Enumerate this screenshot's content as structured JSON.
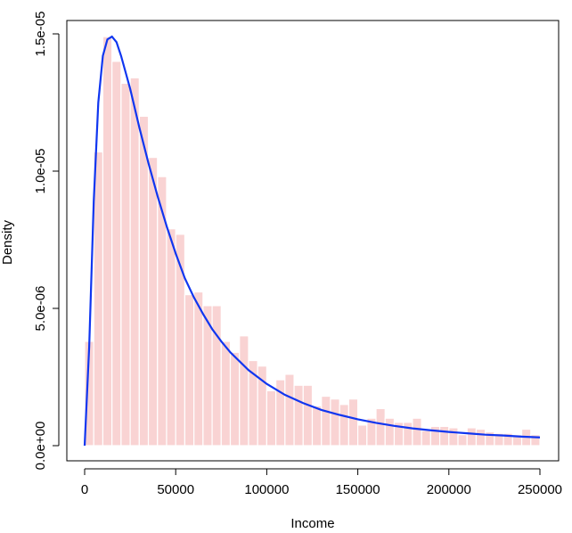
{
  "chart_data": {
    "type": "bar",
    "xlabel": "Income",
    "ylabel": "Density",
    "xlim": [
      0,
      250000
    ],
    "ylim": [
      0,
      1.5e-05
    ],
    "x_ticks": [
      0,
      50000,
      100000,
      150000,
      200000,
      250000
    ],
    "x_tick_labels": [
      "0",
      "50000",
      "100000",
      "150000",
      "200000",
      "250000"
    ],
    "y_ticks": [
      0,
      5e-06,
      1e-05,
      1.5e-05
    ],
    "y_tick_labels": [
      "0.0e+00",
      "5.0e-06",
      "1.0e-05",
      "1.5e-05"
    ],
    "bin_width": 5000,
    "bins": [
      [
        0,
        3.8e-06
      ],
      [
        5000,
        1.07e-05
      ],
      [
        10000,
        1.49e-05
      ],
      [
        15000,
        1.4e-05
      ],
      [
        20000,
        1.32e-05
      ],
      [
        25000,
        1.34e-05
      ],
      [
        30000,
        1.2e-05
      ],
      [
        35000,
        1.05e-05
      ],
      [
        40000,
        9.8e-06
      ],
      [
        45000,
        7.9e-06
      ],
      [
        50000,
        7.7e-06
      ],
      [
        55000,
        5.5e-06
      ],
      [
        60000,
        5.6e-06
      ],
      [
        65000,
        5.1e-06
      ],
      [
        70000,
        5.1e-06
      ],
      [
        75000,
        3.8e-06
      ],
      [
        80000,
        3.4e-06
      ],
      [
        85000,
        4e-06
      ],
      [
        90000,
        3.1e-06
      ],
      [
        95000,
        2.9e-06
      ],
      [
        100000,
        2e-06
      ],
      [
        105000,
        2.4e-06
      ],
      [
        110000,
        2.6e-06
      ],
      [
        115000,
        2.2e-06
      ],
      [
        120000,
        2.2e-06
      ],
      [
        125000,
        1.45e-06
      ],
      [
        130000,
        1.8e-06
      ],
      [
        135000,
        1.7e-06
      ],
      [
        140000,
        1.5e-06
      ],
      [
        145000,
        1.7e-06
      ],
      [
        150000,
        7.5e-07
      ],
      [
        155000,
        1e-06
      ],
      [
        160000,
        1.35e-06
      ],
      [
        165000,
        1e-06
      ],
      [
        170000,
        8.5e-07
      ],
      [
        175000,
        8.5e-07
      ],
      [
        180000,
        1e-06
      ],
      [
        185000,
        5.5e-07
      ],
      [
        190000,
        7e-07
      ],
      [
        195000,
        7e-07
      ],
      [
        200000,
        6.5e-07
      ],
      [
        205000,
        4e-07
      ],
      [
        210000,
        6.5e-07
      ],
      [
        215000,
        6e-07
      ],
      [
        220000,
        5e-07
      ],
      [
        225000,
        4.5e-07
      ],
      [
        230000,
        4.5e-07
      ],
      [
        235000,
        4e-07
      ],
      [
        240000,
        6e-07
      ],
      [
        245000,
        4e-07
      ]
    ],
    "density_curve": {
      "x": [
        0,
        2500,
        5000,
        7500,
        10000,
        12500,
        15000,
        17500,
        20000,
        25000,
        30000,
        35000,
        40000,
        45000,
        50000,
        55000,
        60000,
        65000,
        70000,
        75000,
        80000,
        90000,
        100000,
        110000,
        120000,
        130000,
        140000,
        150000,
        160000,
        170000,
        180000,
        190000,
        200000,
        210000,
        220000,
        230000,
        240000,
        250000
      ],
      "y": [
        0,
        3.6e-06,
        8.9e-06,
        1.25e-05,
        1.42e-05,
        1.48e-05,
        1.49e-05,
        1.47e-05,
        1.42e-05,
        1.3e-05,
        1.16e-05,
        1.03e-05,
        9.1e-06,
        8e-06,
        7e-06,
        6.1e-06,
        5.4e-06,
        4.8e-06,
        4.25e-06,
        3.8e-06,
        3.4e-06,
        2.75e-06,
        2.25e-06,
        1.85e-06,
        1.55e-06,
        1.3e-06,
        1.12e-06,
        9.6e-07,
        8.3e-07,
        7.2e-07,
        6.3e-07,
        5.6e-07,
        5e-07,
        4.5e-07,
        4e-07,
        3.7e-07,
        3.3e-07,
        3e-07
      ]
    },
    "colors": {
      "bars": "#f9d3d3",
      "bar_border": "#ffffff",
      "curve": "#1036f0",
      "axis": "#000000"
    }
  }
}
